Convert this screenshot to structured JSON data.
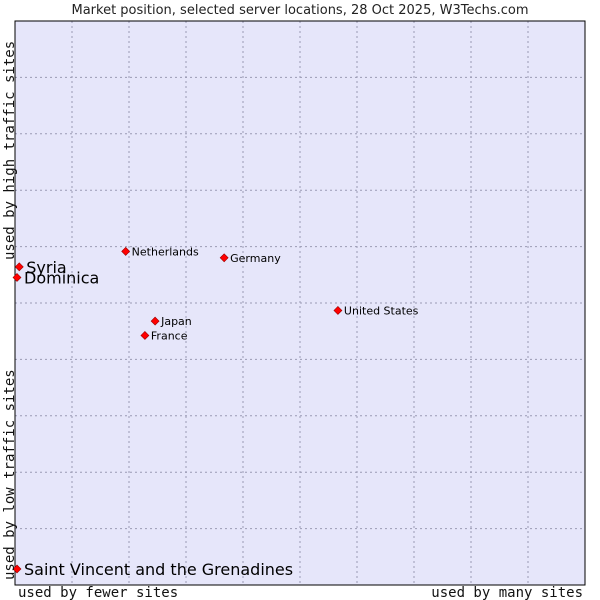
{
  "chart_data": {
    "type": "scatter",
    "title": "Market position, selected server locations, 28 Oct 2025, W3Techs.com",
    "xlabel_low": "used by fewer sites",
    "xlabel_high": "used by many sites",
    "ylabel_low": "used by low traffic sites",
    "ylabel_high": "used by high traffic sites",
    "xlim": [
      0,
      100
    ],
    "ylim": [
      0,
      100
    ],
    "grid": true,
    "colors": {
      "plot_bg": "#e6e6fa",
      "grid": "#9a9ab4",
      "point": "#ff0000",
      "point_stroke": "#990000"
    },
    "points": [
      {
        "label": "Netherlands",
        "x": 19.2,
        "y": 59.7,
        "emphasis": false
      },
      {
        "label": "Germany",
        "x": 36.6,
        "y": 58.5,
        "emphasis": false
      },
      {
        "label": "Syria",
        "x": 0.4,
        "y": 56.8,
        "emphasis": true
      },
      {
        "label": "Dominica",
        "x": 0.0,
        "y": 54.8,
        "emphasis": true
      },
      {
        "label": "United States",
        "x": 56.7,
        "y": 48.6,
        "emphasis": false
      },
      {
        "label": "Japan",
        "x": 24.4,
        "y": 46.6,
        "emphasis": false
      },
      {
        "label": "France",
        "x": 22.6,
        "y": 43.9,
        "emphasis": false
      },
      {
        "label": "Saint Vincent and the Grenadines",
        "x": 0.0,
        "y": 0.0,
        "emphasis": true
      }
    ]
  }
}
